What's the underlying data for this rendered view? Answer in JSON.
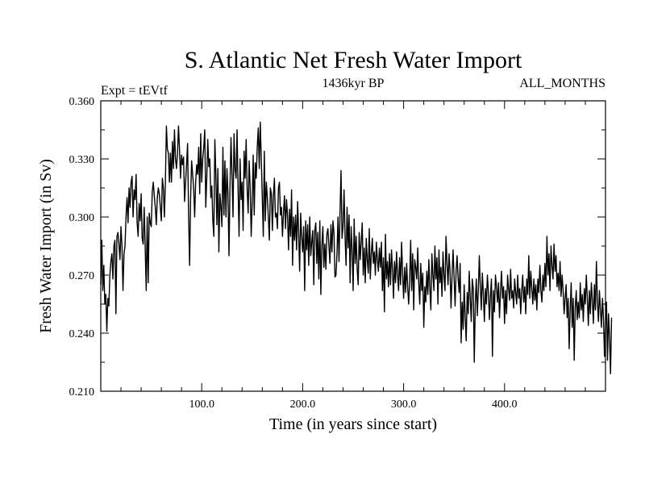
{
  "chart_data": {
    "type": "line",
    "title": "S. Atlantic Net Fresh Water Import",
    "subtitle_left": "Expt = tEVtf",
    "subtitle_center": "1436kyr BP",
    "subtitle_right": "ALL_MONTHS",
    "xlabel": "Time (in years since start)",
    "ylabel": "Fresh Water Import (in Sv)",
    "xlim": [
      0,
      500
    ],
    "ylim": [
      0.21,
      0.36
    ],
    "xticks": [
      100,
      200,
      300,
      400
    ],
    "xtick_labels": [
      "100.0",
      "200.0",
      "300.0",
      "400.0"
    ],
    "yticks": [
      0.21,
      0.24,
      0.27,
      0.3,
      0.33,
      0.36
    ],
    "ytick_labels": [
      "0.210",
      "0.240",
      "0.270",
      "0.300",
      "0.330",
      "0.360"
    ],
    "series": [
      {
        "name": "Fresh Water Import",
        "x_start": 0,
        "x_step": 1,
        "values": [
          0.265,
          0.288,
          0.262,
          0.275,
          0.255,
          0.26,
          0.241,
          0.258,
          0.254,
          0.27,
          0.277,
          0.281,
          0.268,
          0.285,
          0.288,
          0.25,
          0.29,
          0.292,
          0.286,
          0.278,
          0.295,
          0.285,
          0.262,
          0.281,
          0.285,
          0.3,
          0.31,
          0.297,
          0.315,
          0.305,
          0.318,
          0.321,
          0.3,
          0.314,
          0.309,
          0.322,
          0.297,
          0.29,
          0.307,
          0.298,
          0.312,
          0.289,
          0.286,
          0.305,
          0.284,
          0.262,
          0.3,
          0.266,
          0.302,
          0.297,
          0.295,
          0.313,
          0.318,
          0.311,
          0.305,
          0.296,
          0.31,
          0.315,
          0.312,
          0.305,
          0.298,
          0.32,
          0.315,
          0.3,
          0.318,
          0.347,
          0.335,
          0.333,
          0.318,
          0.333,
          0.318,
          0.339,
          0.325,
          0.345,
          0.33,
          0.325,
          0.333,
          0.347,
          0.335,
          0.32,
          0.332,
          0.327,
          0.331,
          0.308,
          0.318,
          0.327,
          0.338,
          0.301,
          0.275,
          0.31,
          0.329,
          0.322,
          0.315,
          0.3,
          0.318,
          0.327,
          0.322,
          0.336,
          0.312,
          0.343,
          0.318,
          0.33,
          0.336,
          0.345,
          0.305,
          0.32,
          0.34,
          0.326,
          0.33,
          0.31,
          0.316,
          0.298,
          0.29,
          0.34,
          0.322,
          0.296,
          0.325,
          0.282,
          0.312,
          0.305,
          0.295,
          0.336,
          0.301,
          0.329,
          0.3,
          0.325,
          0.312,
          0.28,
          0.316,
          0.341,
          0.322,
          0.3,
          0.343,
          0.325,
          0.32,
          0.345,
          0.315,
          0.29,
          0.33,
          0.309,
          0.318,
          0.293,
          0.334,
          0.32,
          0.34,
          0.314,
          0.302,
          0.329,
          0.315,
          0.29,
          0.308,
          0.332,
          0.301,
          0.328,
          0.32,
          0.336,
          0.346,
          0.325,
          0.349,
          0.33,
          0.31,
          0.29,
          0.334,
          0.298,
          0.318,
          0.31,
          0.3,
          0.288,
          0.315,
          0.312,
          0.293,
          0.311,
          0.32,
          0.3,
          0.302,
          0.294,
          0.315,
          0.318,
          0.301,
          0.305,
          0.29,
          0.302,
          0.311,
          0.294,
          0.309,
          0.301,
          0.283,
          0.304,
          0.29,
          0.314,
          0.275,
          0.3,
          0.288,
          0.301,
          0.283,
          0.308,
          0.292,
          0.272,
          0.302,
          0.29,
          0.282,
          0.295,
          0.262,
          0.298,
          0.283,
          0.296,
          0.275,
          0.3,
          0.28,
          0.287,
          0.293,
          0.265,
          0.293,
          0.297,
          0.276,
          0.292,
          0.268,
          0.298,
          0.26,
          0.285,
          0.295,
          0.274,
          0.286,
          0.273,
          0.291,
          0.294,
          0.285,
          0.276,
          0.296,
          0.282,
          0.298,
          0.292,
          0.269,
          0.27,
          0.281,
          0.3,
          0.277,
          0.302,
          0.324,
          0.289,
          0.295,
          0.314,
          0.29,
          0.275,
          0.305,
          0.284,
          0.301,
          0.266,
          0.295,
          0.283,
          0.262,
          0.299,
          0.276,
          0.29,
          0.273,
          0.265,
          0.292,
          0.278,
          0.287,
          0.297,
          0.27,
          0.284,
          0.266,
          0.289,
          0.278,
          0.271,
          0.294,
          0.268,
          0.281,
          0.289,
          0.276,
          0.282,
          0.27,
          0.287,
          0.278,
          0.272,
          0.284,
          0.274,
          0.287,
          0.262,
          0.279,
          0.251,
          0.291,
          0.268,
          0.277,
          0.264,
          0.281,
          0.265,
          0.283,
          0.273,
          0.258,
          0.277,
          0.266,
          0.282,
          0.27,
          0.262,
          0.279,
          0.265,
          0.287,
          0.271,
          0.258,
          0.274,
          0.261,
          0.276,
          0.264,
          0.255,
          0.267,
          0.288,
          0.262,
          0.281,
          0.252,
          0.278,
          0.274,
          0.268,
          0.284,
          0.266,
          0.255,
          0.276,
          0.262,
          0.271,
          0.243,
          0.264,
          0.256,
          0.272,
          0.26,
          0.278,
          0.263,
          0.252,
          0.281,
          0.27,
          0.262,
          0.285,
          0.268,
          0.279,
          0.255,
          0.283,
          0.266,
          0.274,
          0.259,
          0.282,
          0.27,
          0.262,
          0.29,
          0.276,
          0.265,
          0.281,
          0.272,
          0.253,
          0.27,
          0.283,
          0.269,
          0.254,
          0.272,
          0.28,
          0.268,
          0.261,
          0.276,
          0.235,
          0.256,
          0.242,
          0.265,
          0.248,
          0.236,
          0.261,
          0.25,
          0.272,
          0.258,
          0.246,
          0.268,
          0.263,
          0.225,
          0.255,
          0.268,
          0.249,
          0.262,
          0.28,
          0.264,
          0.252,
          0.271,
          0.26,
          0.246,
          0.263,
          0.255,
          0.27,
          0.261,
          0.247,
          0.259,
          0.268,
          0.228,
          0.262,
          0.251,
          0.27,
          0.264,
          0.256,
          0.266,
          0.248,
          0.262,
          0.272,
          0.258,
          0.264,
          0.245,
          0.262,
          0.25,
          0.27,
          0.263,
          0.257,
          0.273,
          0.258,
          0.262,
          0.253,
          0.268,
          0.261,
          0.255,
          0.27,
          0.258,
          0.263,
          0.25,
          0.262,
          0.27,
          0.256,
          0.264,
          0.25,
          0.268,
          0.26,
          0.28,
          0.258,
          0.272,
          0.263,
          0.255,
          0.268,
          0.257,
          0.265,
          0.252,
          0.268,
          0.261,
          0.275,
          0.262,
          0.256,
          0.27,
          0.262,
          0.276,
          0.264,
          0.29,
          0.27,
          0.281,
          0.262,
          0.285,
          0.275,
          0.268,
          0.286,
          0.272,
          0.28,
          0.264,
          0.271,
          0.262,
          0.277,
          0.259,
          0.27,
          0.262,
          0.25,
          0.258,
          0.265,
          0.248,
          0.258,
          0.232,
          0.252,
          0.266,
          0.243,
          0.258,
          0.226,
          0.253,
          0.262,
          0.247,
          0.256,
          0.248,
          0.266,
          0.252,
          0.26,
          0.246,
          0.263,
          0.255,
          0.27,
          0.258,
          0.244,
          0.262,
          0.25,
          0.266,
          0.257,
          0.245,
          0.265,
          0.252,
          0.277,
          0.256,
          0.246,
          0.262,
          0.252,
          0.243,
          0.258,
          0.248,
          0.228,
          0.245,
          0.256,
          0.226,
          0.25,
          0.238,
          0.219,
          0.248
        ]
      }
    ]
  }
}
